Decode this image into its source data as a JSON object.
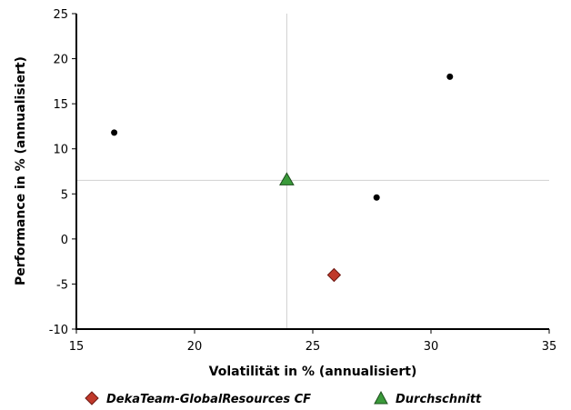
{
  "chart_data": {
    "type": "scatter",
    "title": "",
    "xlabel": "Volatilität in % (annualisiert)",
    "ylabel": "Performance in % (annualisiert)",
    "xlim": [
      15,
      35
    ],
    "ylim": [
      -10,
      25
    ],
    "xticks": [
      "15",
      "20",
      "25",
      "30",
      "35"
    ],
    "yticks": [
      "25",
      "20",
      "15",
      "10",
      "5",
      "0",
      "-5",
      "-10"
    ],
    "grid": false,
    "reference_lines": {
      "x": 23.9,
      "y": 6.5
    },
    "other_points": [
      {
        "x": 16.6,
        "y": 11.8
      },
      {
        "x": 30.8,
        "y": 18.0
      },
      {
        "x": 27.7,
        "y": 4.6
      }
    ],
    "series": [
      {
        "name": "DekaTeam-GlobalResources CF",
        "marker": "diamond",
        "color": "#c0392b",
        "points": [
          {
            "x": 25.9,
            "y": -4.0
          }
        ]
      },
      {
        "name": "Durchschnitt",
        "marker": "triangle",
        "color": "#3a9a3a",
        "points": [
          {
            "x": 23.9,
            "y": 6.5
          }
        ]
      }
    ],
    "legend_position": "bottom"
  }
}
